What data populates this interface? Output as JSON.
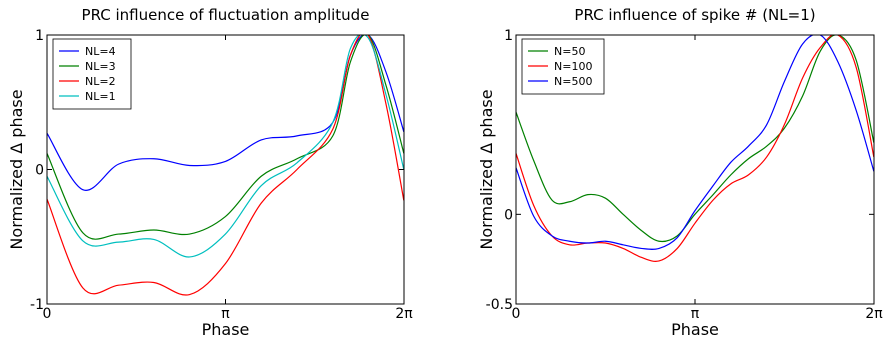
{
  "chart_data": [
    {
      "type": "line",
      "title": "PRC influence of fluctuation amplitude",
      "xlabel": "Phase",
      "ylabel": "Normalized Δ phase",
      "xlim": [
        0,
        6.2832
      ],
      "ylim": [
        -1,
        1
      ],
      "xticks": [
        0,
        3.1416,
        6.2832
      ],
      "xtick_labels": [
        "0",
        "π",
        "2π"
      ],
      "yticks": [
        -1,
        0,
        1
      ],
      "ytick_labels": [
        "-1",
        "0",
        "1"
      ],
      "legend_position": "top-left",
      "series": [
        {
          "name": "NL=4",
          "color": "#0000ff",
          "x": [
            0,
            0.63,
            1.26,
            1.88,
            2.51,
            3.14,
            3.77,
            4.4,
            5.03,
            5.34,
            5.65,
            5.97,
            6.28
          ],
          "y": [
            0.27,
            -0.15,
            0.04,
            0.08,
            0.03,
            0.06,
            0.22,
            0.25,
            0.35,
            0.85,
            1.0,
            0.72,
            0.28
          ]
        },
        {
          "name": "NL=3",
          "color": "#008000",
          "x": [
            0,
            0.63,
            1.26,
            1.88,
            2.51,
            3.14,
            3.77,
            4.4,
            5.03,
            5.34,
            5.65,
            5.97,
            6.28
          ],
          "y": [
            0.12,
            -0.47,
            -0.48,
            -0.45,
            -0.48,
            -0.35,
            -0.05,
            0.08,
            0.25,
            0.8,
            1.0,
            0.62,
            0.12
          ]
        },
        {
          "name": "NL=2",
          "color": "#ff0000",
          "x": [
            0,
            0.63,
            1.26,
            1.88,
            2.51,
            3.14,
            3.77,
            4.4,
            5.03,
            5.34,
            5.65,
            5.97,
            6.28
          ],
          "y": [
            -0.22,
            -0.88,
            -0.86,
            -0.84,
            -0.93,
            -0.7,
            -0.25,
            0.0,
            0.3,
            0.85,
            1.0,
            0.48,
            -0.23
          ]
        },
        {
          "name": "NL=1",
          "color": "#00bfbf",
          "x": [
            0,
            0.63,
            1.26,
            1.88,
            2.51,
            3.14,
            3.77,
            4.4,
            5.03,
            5.34,
            5.65,
            5.97,
            6.28
          ],
          "y": [
            -0.05,
            -0.53,
            -0.54,
            -0.52,
            -0.65,
            -0.48,
            -0.12,
            0.05,
            0.35,
            0.9,
            0.98,
            0.55,
            0.0
          ]
        }
      ]
    },
    {
      "type": "line",
      "title": "PRC influence of spike # (NL=1)",
      "xlabel": "Phase",
      "ylabel": "Normalized Δ phase",
      "xlim": [
        0,
        6.2832
      ],
      "ylim": [
        -0.5,
        1
      ],
      "xticks": [
        0,
        3.1416,
        6.2832
      ],
      "xtick_labels": [
        "0",
        "π",
        "2π"
      ],
      "yticks": [
        -0.5,
        0,
        1
      ],
      "ytick_labels": [
        "-0.5",
        "0",
        "1"
      ],
      "legend_position": "top-left",
      "series": [
        {
          "name": "N=50",
          "color": "#008000",
          "x": [
            0,
            0.31,
            0.63,
            0.94,
            1.26,
            1.57,
            1.88,
            2.2,
            2.51,
            2.83,
            3.14,
            3.46,
            3.77,
            4.08,
            4.4,
            4.71,
            5.03,
            5.34,
            5.65,
            5.97,
            6.28
          ],
          "y": [
            0.57,
            0.3,
            0.08,
            0.07,
            0.11,
            0.09,
            0.0,
            -0.09,
            -0.15,
            -0.12,
            0.0,
            0.11,
            0.22,
            0.31,
            0.38,
            0.48,
            0.66,
            0.91,
            1.0,
            0.86,
            0.4
          ]
        },
        {
          "name": "N=100",
          "color": "#ff0000",
          "x": [
            0,
            0.31,
            0.63,
            0.94,
            1.26,
            1.57,
            1.88,
            2.2,
            2.51,
            2.83,
            3.14,
            3.46,
            3.77,
            4.08,
            4.4,
            4.71,
            5.03,
            5.34,
            5.65,
            5.97,
            6.28
          ],
          "y": [
            0.34,
            0.05,
            -0.12,
            -0.17,
            -0.16,
            -0.16,
            -0.19,
            -0.24,
            -0.26,
            -0.19,
            -0.05,
            0.08,
            0.17,
            0.22,
            0.32,
            0.5,
            0.76,
            0.93,
            1.0,
            0.82,
            0.32
          ]
        },
        {
          "name": "N=500",
          "color": "#0000ff",
          "x": [
            0,
            0.31,
            0.63,
            0.94,
            1.26,
            1.57,
            1.88,
            2.2,
            2.51,
            2.83,
            3.14,
            3.46,
            3.77,
            4.08,
            4.4,
            4.71,
            5.03,
            5.34,
            5.65,
            5.97,
            6.28
          ],
          "y": [
            0.26,
            -0.01,
            -0.12,
            -0.15,
            -0.16,
            -0.15,
            -0.17,
            -0.19,
            -0.19,
            -0.13,
            0.02,
            0.16,
            0.29,
            0.38,
            0.5,
            0.74,
            0.95,
            1.0,
            0.85,
            0.58,
            0.24
          ]
        }
      ]
    }
  ]
}
